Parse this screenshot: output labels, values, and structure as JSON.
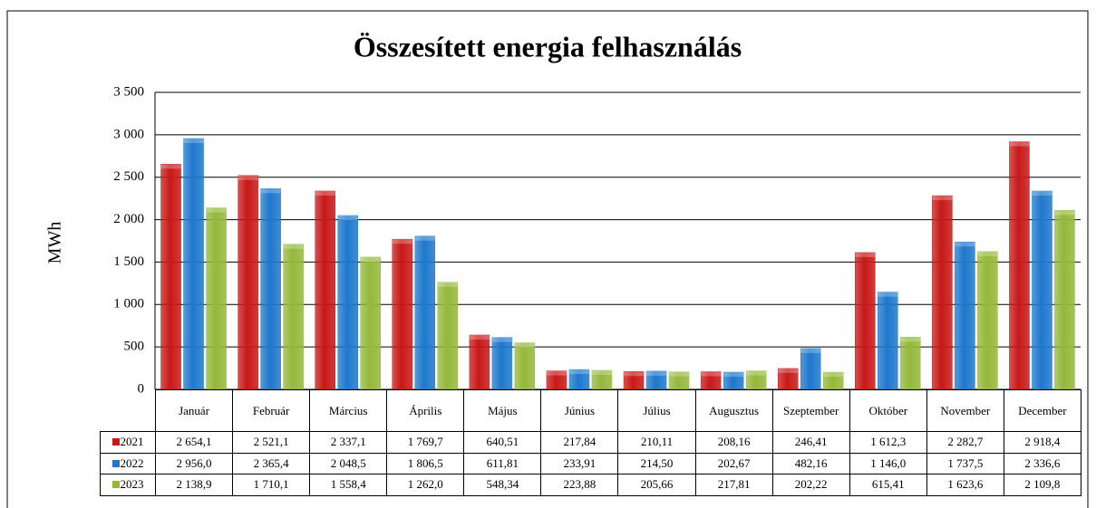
{
  "chart_data": {
    "type": "bar",
    "title": "Összesített energia felhasználás",
    "ylabel": "MWh",
    "categories": [
      "Január",
      "Február",
      "Március",
      "Április",
      "Május",
      "Június",
      "Július",
      "Augusztus",
      "Szeptember",
      "Október",
      "November",
      "December"
    ],
    "series": [
      {
        "name": "2021",
        "color": "#c81818",
        "values": [
          2654.1,
          2521.1,
          2337.1,
          1769.7,
          640.51,
          217.84,
          210.11,
          208.16,
          246.41,
          1612.3,
          2282.7,
          2918.4
        ],
        "value_labels": [
          "2 654,1",
          "2 521,1",
          "2 337,1",
          "1 769,7",
          "640,51",
          "217,84",
          "210,11",
          "208,16",
          "246,41",
          "1 612,3",
          "2 282,7",
          "2 918,4"
        ]
      },
      {
        "name": "2022",
        "color": "#1e78cc",
        "values": [
          2956.0,
          2365.4,
          2048.5,
          1806.5,
          611.81,
          233.91,
          214.5,
          202.67,
          482.16,
          1146.0,
          1737.5,
          2336.6
        ],
        "value_labels": [
          "2 956,0",
          "2 365,4",
          "2 048,5",
          "1 806,5",
          "611,81",
          "233,91",
          "214,50",
          "202,67",
          "482,16",
          "1 146,0",
          "1 737,5",
          "2 336,6"
        ]
      },
      {
        "name": "2023",
        "color": "#94b83a",
        "values": [
          2138.9,
          1710.1,
          1558.4,
          1262.0,
          548.34,
          223.88,
          205.66,
          217.81,
          202.22,
          615.41,
          1623.6,
          2109.8
        ],
        "value_labels": [
          "2 138,9",
          "1 710,1",
          "1 558,4",
          "1 262,0",
          "548,34",
          "223,88",
          "205,66",
          "217,81",
          "202,22",
          "615,41",
          "1 623,6",
          "2 109,8"
        ]
      }
    ],
    "ylim": [
      0,
      3500
    ],
    "yticks": [
      0,
      500,
      {
        "value": 1000,
        "label": "1 000"
      },
      {
        "value": 1500,
        "label": "1 500"
      },
      {
        "value": 2000,
        "label": "2 000"
      },
      {
        "value": 2500,
        "label": "2 500"
      },
      {
        "value": 3000,
        "label": "3 000"
      },
      {
        "value": 3500,
        "label": "3 500"
      }
    ],
    "grid": true
  }
}
